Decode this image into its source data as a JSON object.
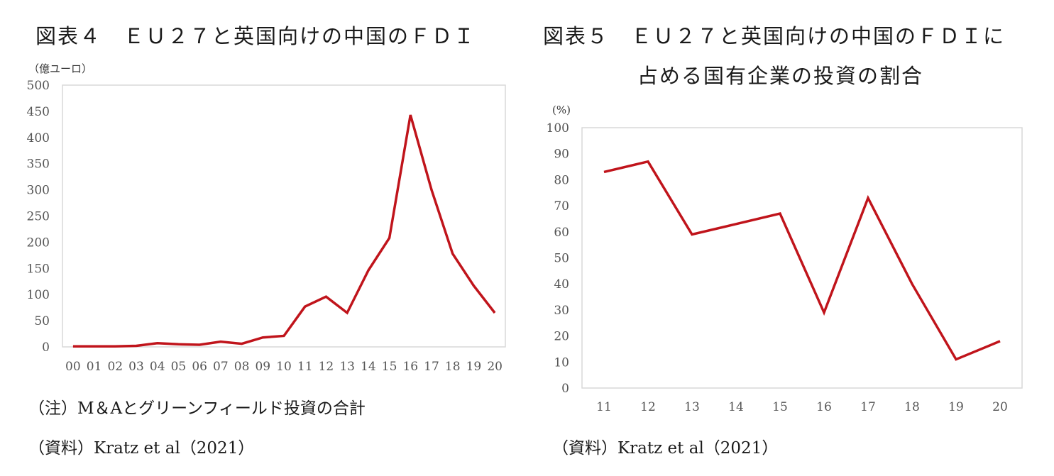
{
  "figures": [
    {
      "title": "図表４　ＥＵ２７と英国向けの中国のＦＤＩ",
      "unit_label": "（億ユーロ）",
      "note": "（注）M＆Aとグリーンフィールド投資の合計",
      "source": "（資料）Kratz et al（2021）"
    },
    {
      "title_line1": "図表５　ＥＵ２７と英国向けの中国のＦＤＩに",
      "title_line2": "占める国有企業の投資の割合",
      "unit_label": "(%)",
      "source": "（資料）Kratz et al（2021）"
    }
  ],
  "colors": {
    "line": "#c0141b",
    "frame": "#d9d9d9",
    "tick_text": "#555555"
  },
  "chart_data": [
    {
      "type": "line",
      "categories": [
        "00",
        "01",
        "02",
        "03",
        "04",
        "05",
        "06",
        "07",
        "08",
        "09",
        "10",
        "11",
        "12",
        "13",
        "14",
        "15",
        "16",
        "17",
        "18",
        "19",
        "20"
      ],
      "series": [
        {
          "values": [
            1,
            1,
            1,
            2,
            7,
            5,
            4,
            10,
            6,
            18,
            21,
            77,
            96,
            65,
            146,
            208,
            443,
            300,
            178,
            117,
            65
          ]
        }
      ],
      "ylim": [
        0,
        500
      ],
      "yticks": [
        0,
        50,
        100,
        150,
        200,
        250,
        300,
        350,
        400,
        450,
        500
      ],
      "grid": false,
      "legend": "none"
    },
    {
      "type": "line",
      "categories": [
        "11",
        "12",
        "13",
        "14",
        "15",
        "16",
        "17",
        "18",
        "19",
        "20"
      ],
      "series": [
        {
          "values": [
            83,
            87,
            59,
            63,
            67,
            29,
            73,
            40,
            11,
            18
          ]
        }
      ],
      "ylim": [
        0,
        100
      ],
      "yticks": [
        0,
        10,
        20,
        30,
        40,
        50,
        60,
        70,
        80,
        90,
        100
      ],
      "grid": false,
      "legend": "none"
    }
  ]
}
